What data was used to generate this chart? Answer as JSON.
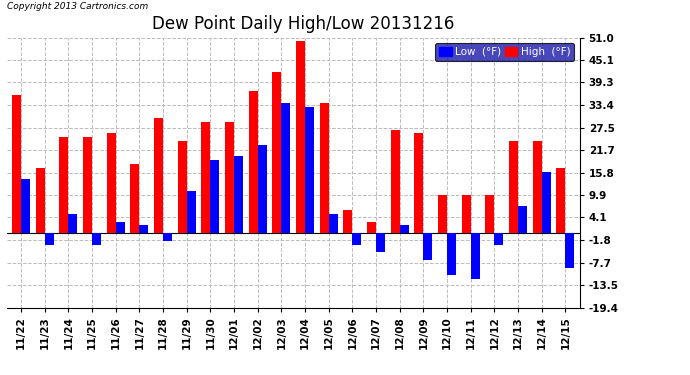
{
  "title": "Dew Point Daily High/Low 20131216",
  "copyright": "Copyright 2013 Cartronics.com",
  "legend_low": "Low  (°F)",
  "legend_high": "High  (°F)",
  "dates": [
    "11/22",
    "11/23",
    "11/24",
    "11/25",
    "11/26",
    "11/27",
    "11/28",
    "11/29",
    "11/30",
    "12/01",
    "12/02",
    "12/03",
    "12/04",
    "12/05",
    "12/06",
    "12/07",
    "12/08",
    "12/09",
    "12/10",
    "12/11",
    "12/12",
    "12/13",
    "12/14",
    "12/15"
  ],
  "high": [
    36,
    17,
    25,
    25,
    26,
    18,
    30,
    24,
    29,
    29,
    37,
    42,
    50,
    34,
    6,
    3,
    27,
    26,
    10,
    10,
    10,
    24,
    24,
    17
  ],
  "low": [
    14,
    -3,
    5,
    -3,
    3,
    2,
    -2,
    11,
    19,
    20,
    23,
    34,
    33,
    5,
    -3,
    -5,
    2,
    -7,
    -11,
    -12,
    -3,
    7,
    16,
    -9
  ],
  "ylim": [
    -19.4,
    51.0
  ],
  "yticks": [
    51.0,
    45.1,
    39.3,
    33.4,
    27.5,
    21.7,
    15.8,
    9.9,
    4.1,
    -1.8,
    -7.7,
    -13.5,
    -19.4
  ],
  "bar_color_high": "#ff0000",
  "bar_color_low": "#0000ff",
  "bg_color": "#ffffff",
  "grid_color": "#bbbbbb",
  "title_fontsize": 12,
  "tick_fontsize": 7.5,
  "bar_width": 0.38,
  "legend_bg": "#1a1aaa"
}
